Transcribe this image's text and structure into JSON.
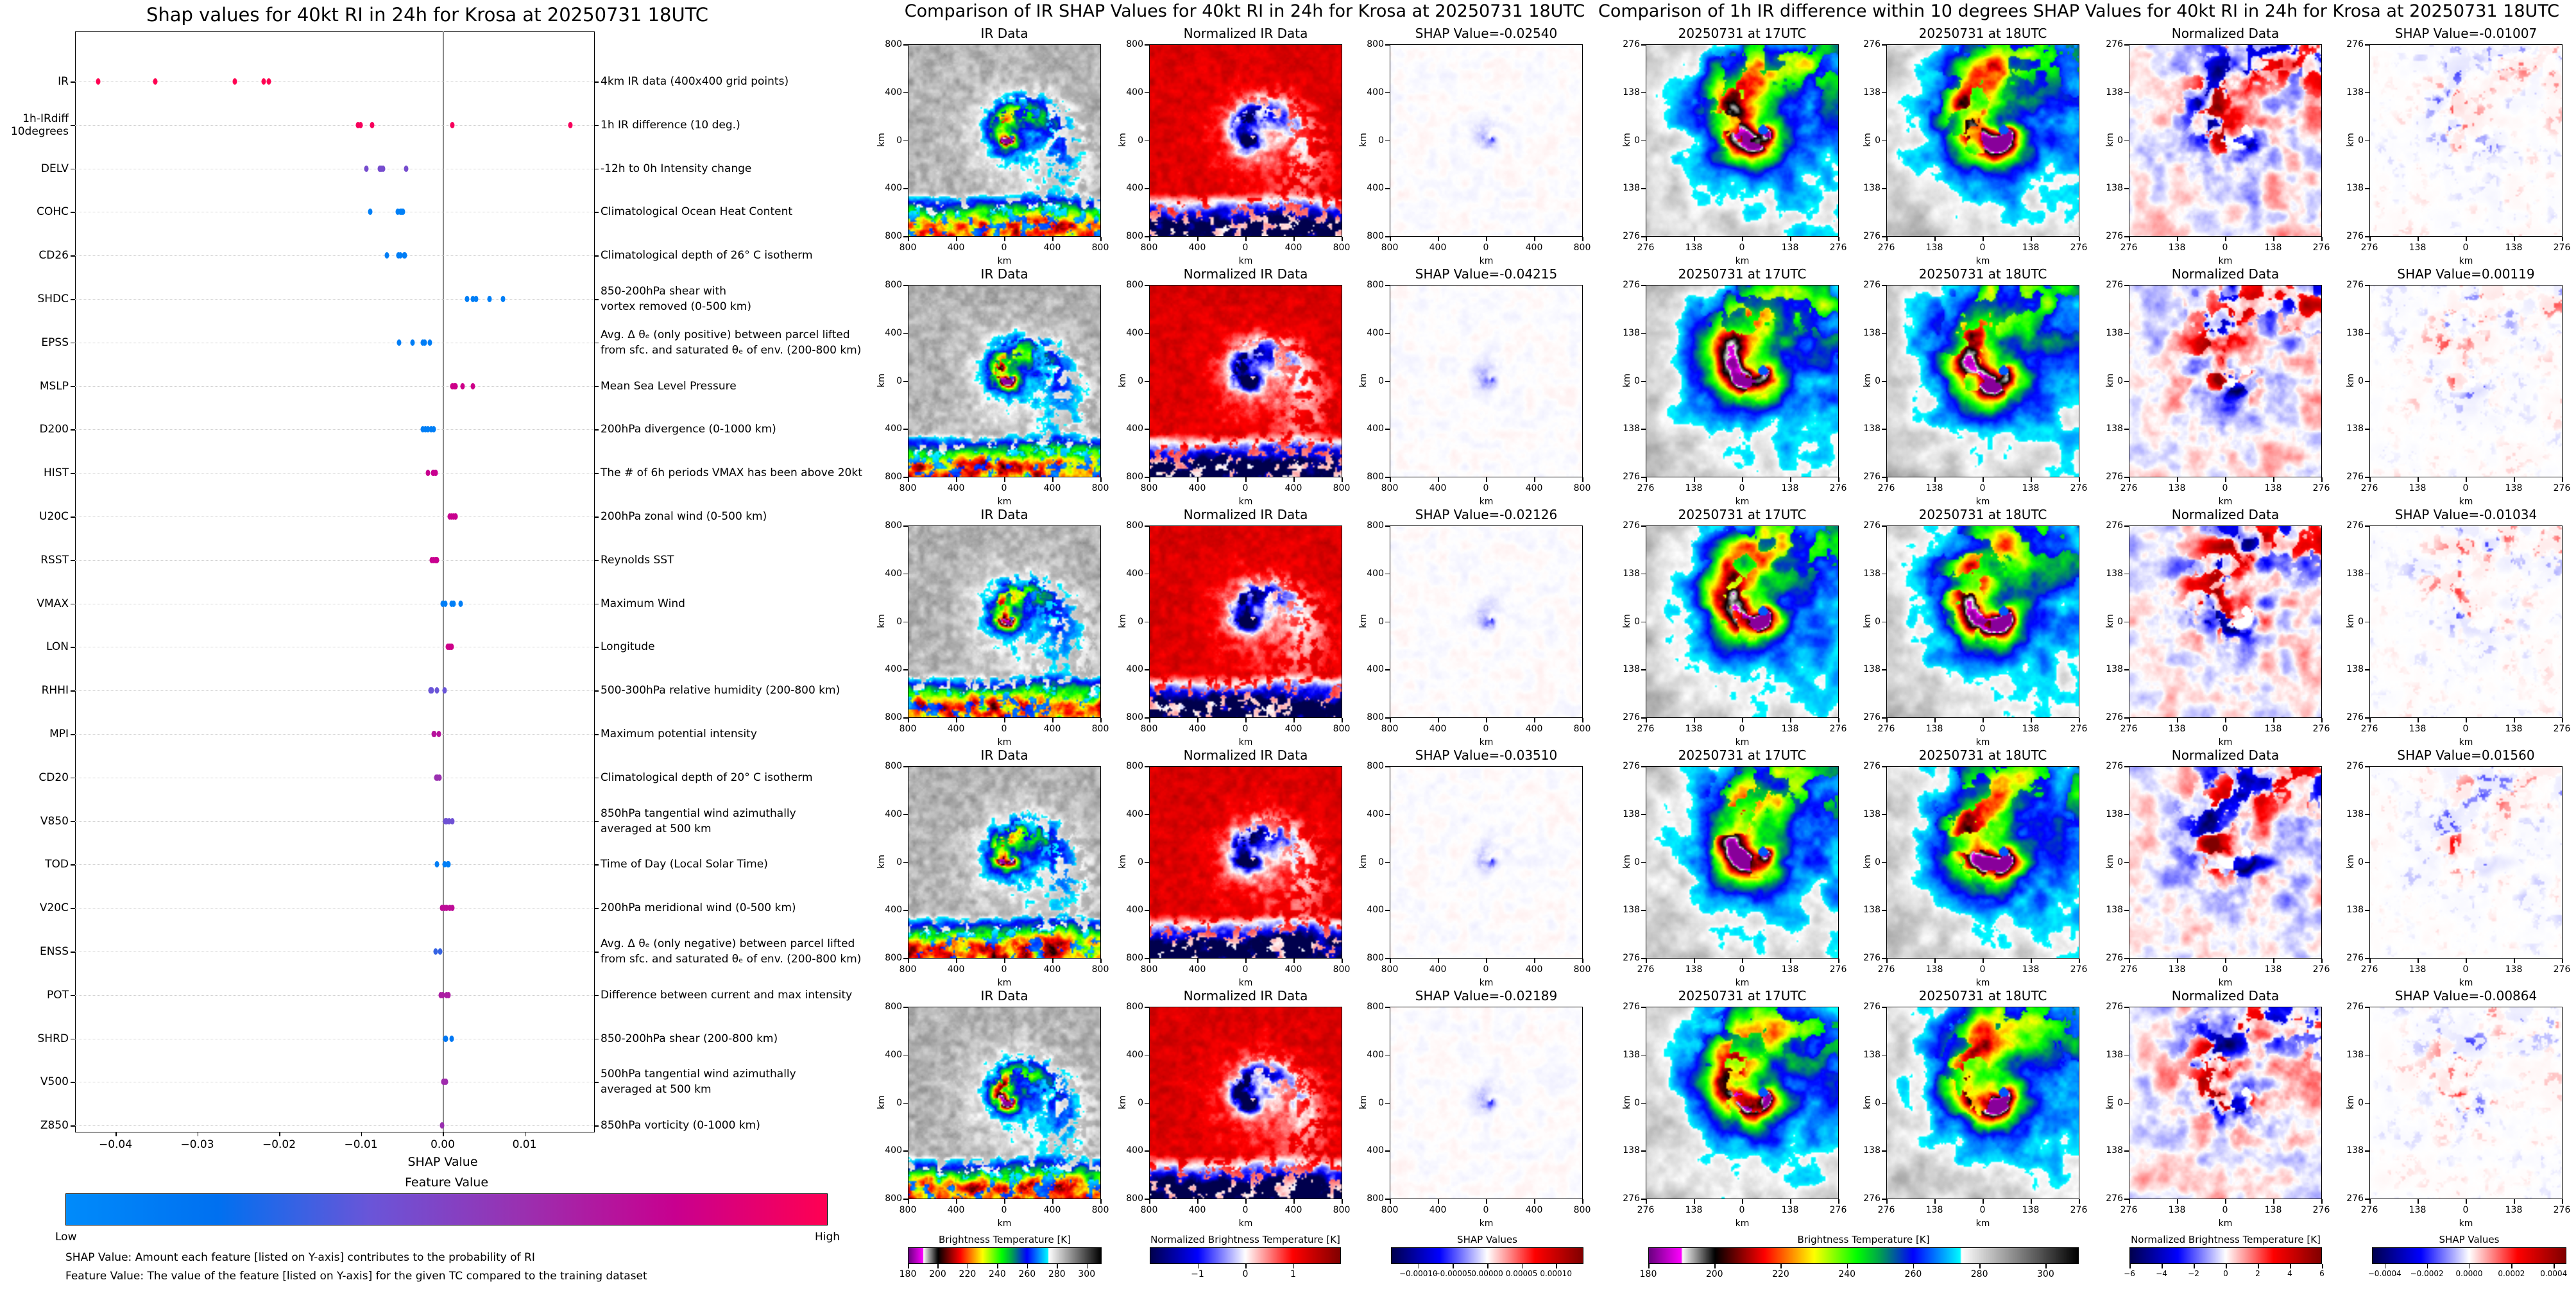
{
  "chart_data": {
    "type": "scatter",
    "title": "Shap values for 40kt RI in 24h for Krosa at 20250731 18UTC",
    "xlabel": "SHAP Value",
    "xlim": [
      -0.0449,
      0.0185
    ],
    "xticks": [
      {
        "label": "−0.04",
        "value": -0.04
      },
      {
        "label": "−0.03",
        "value": -0.03
      },
      {
        "label": "−0.02",
        "value": -0.02
      },
      {
        "label": "−0.01",
        "value": -0.01
      },
      {
        "label": "0.00",
        "value": 0.0
      },
      {
        "label": "0.01",
        "value": 0.01
      }
    ],
    "grid": "horizontal dotted",
    "features": [
      {
        "name": "IR",
        "desc": "4km IR data (400x400 grid points)",
        "feature_value": 1.0,
        "shap": [
          -0.0254,
          -0.04215,
          -0.02126,
          -0.0351,
          -0.02189
        ]
      },
      {
        "name": "1h-IRdiff\n10degrees",
        "desc": "1h IR difference (10 deg.)",
        "feature_value": 0.97,
        "shap": [
          -0.01007,
          0.00119,
          -0.01034,
          0.0156,
          -0.00864
        ]
      },
      {
        "name": "DELV",
        "desc": "-12h to 0h Intensity change",
        "feature_value": 0.45,
        "shap": [
          -0.0093,
          -0.0077,
          -0.0075,
          -0.0073,
          -0.0045
        ]
      },
      {
        "name": "COHC",
        "desc": "Climatological Ocean Heat Content",
        "feature_value": 0.08,
        "shap": [
          -0.0089,
          -0.0055,
          -0.0052,
          -0.005,
          -0.0049
        ]
      },
      {
        "name": "CD26",
        "desc": "Climatological depth of 26° C isotherm",
        "feature_value": 0.1,
        "shap": [
          -0.0068,
          -0.0054,
          -0.0052,
          -0.0047,
          -0.0046
        ]
      },
      {
        "name": "SHDC",
        "desc": "850-200hPa shear with\nvortex removed (0-500 km)",
        "feature_value": 0.1,
        "shap": [
          0.003,
          0.0037,
          0.0041,
          0.0057,
          0.0074
        ]
      },
      {
        "name": "EPSS",
        "desc": "Avg. Δ θₑ (only positive) between parcel lifted\nfrom sfc. and saturated θₑ of env. (200-800 km)",
        "feature_value": 0.1,
        "shap": [
          -0.0053,
          -0.0037,
          -0.0024,
          -0.0022,
          -0.0016
        ]
      },
      {
        "name": "MSLP",
        "desc": "Mean Sea Level Pressure",
        "feature_value": 0.82,
        "shap": [
          0.0012,
          0.0014,
          0.0016,
          0.0024,
          0.0037
        ]
      },
      {
        "name": "D200",
        "desc": "200hPa divergence (0-1000 km)",
        "feature_value": 0.1,
        "shap": [
          -0.0024,
          -0.0021,
          -0.0018,
          -0.0014,
          -0.0011
        ]
      },
      {
        "name": "HIST",
        "desc": "The # of 6h periods VMAX has been above 20kt",
        "feature_value": 0.8,
        "shap": [
          -0.0018,
          -0.0012,
          -0.0011,
          -0.0009,
          -0.0009
        ]
      },
      {
        "name": "U20C",
        "desc": "200hPa zonal wind (0-500 km)",
        "feature_value": 0.8,
        "shap": [
          0.0009,
          0.0011,
          0.0013,
          0.0016,
          0.0016
        ]
      },
      {
        "name": "RSST",
        "desc": "Reynolds SST",
        "feature_value": 0.8,
        "shap": [
          -0.0013,
          -0.0011,
          -0.0009,
          -0.0008,
          -0.0007
        ]
      },
      {
        "name": "VMAX",
        "desc": "Maximum Wind",
        "feature_value": 0.1,
        "shap": [
          0.0,
          0.0003,
          0.0011,
          0.0013,
          0.0022
        ]
      },
      {
        "name": "LON",
        "desc": "Longitude",
        "feature_value": 0.82,
        "shap": [
          0.0006,
          0.0008,
          0.0009,
          0.001,
          0.0011
        ]
      },
      {
        "name": "RHHI",
        "desc": "500-300hPa relative humidity (200-800 km)",
        "feature_value": 0.4,
        "shap": [
          -0.0015,
          -0.0013,
          -0.0007,
          0.0002
        ]
      },
      {
        "name": "MPI",
        "desc": "Maximum potential intensity",
        "feature_value": 0.72,
        "shap": [
          -0.0011,
          -0.001,
          -0.0005
        ]
      },
      {
        "name": "CD20",
        "desc": "Climatological depth of 20° C isotherm",
        "feature_value": 0.6,
        "shap": [
          -0.0008,
          -0.0006,
          -0.0004
        ]
      },
      {
        "name": "V850",
        "desc": "850hPa tangential wind azimuthally\naveraged at 500 km",
        "feature_value": 0.42,
        "shap": [
          0.0003,
          0.0005,
          0.0008,
          0.0012
        ]
      },
      {
        "name": "TOD",
        "desc": "Time of Day (Local Solar Time)",
        "feature_value": 0.1,
        "shap": [
          -0.0007,
          0.0002,
          0.0006,
          0.0007
        ]
      },
      {
        "name": "V20C",
        "desc": "200hPa meridional wind (0-500 km)",
        "feature_value": 0.75,
        "shap": [
          -0.0001,
          0.0002,
          0.0005,
          0.0009,
          0.0012
        ]
      },
      {
        "name": "ENSS",
        "desc": "Avg. Δ θₑ (only negative) between parcel lifted\nfrom sfc. and saturated θₑ of env. (200-800 km)",
        "feature_value": 0.3,
        "shap": [
          -0.0009,
          -0.0003
        ]
      },
      {
        "name": "POT",
        "desc": "Difference between current and max intensity",
        "feature_value": 0.68,
        "shap": [
          -0.0002,
          0.0,
          0.0005,
          0.0007
        ]
      },
      {
        "name": "SHRD",
        "desc": "850-200hPa shear (200-800 km)",
        "feature_value": 0.15,
        "shap": [
          0.0003,
          0.0004,
          0.0011
        ]
      },
      {
        "name": "V500",
        "desc": "500hPa tangential wind azimuthally\naveraged at 500 km",
        "feature_value": 0.62,
        "shap": [
          0.0001,
          0.0002,
          0.0004
        ]
      },
      {
        "name": "Z850",
        "desc": "850hPa vorticity (0-1000 km)",
        "feature_value": 0.6,
        "shap": [
          -0.0001
        ]
      }
    ],
    "colorbar": {
      "title": "Feature Value",
      "low": "Low",
      "high": "High",
      "colors": [
        "#008bfb",
        "#0070f0",
        "#6a55d8",
        "#9a30b0",
        "#c8008f",
        "#ff0052"
      ]
    },
    "notes": [
      "SHAP Value: Amount each feature [listed on Y-axis] contributes to the probability of RI",
      "Feature Value: The value of the feature [listed on Y-axis] for the given TC compared to the training dataset"
    ]
  },
  "ir_comparison": {
    "title": "Comparison of IR SHAP Values for 40kt RI in 24h for Krosa at 20250731 18UTC",
    "axis_label": "km",
    "ticks": [
      "800",
      "400",
      "0",
      "400",
      "800"
    ],
    "rows": [
      [
        "IR Data",
        "Normalized IR Data",
        "SHAP Value=-0.02540"
      ],
      [
        "IR Data",
        "Normalized IR Data",
        "SHAP Value=-0.04215"
      ],
      [
        "IR Data",
        "Normalized IR Data",
        "SHAP Value=-0.02126"
      ],
      [
        "IR Data",
        "Normalized IR Data",
        "SHAP Value=-0.03510"
      ],
      [
        "IR Data",
        "Normalized IR Data",
        "SHAP Value=-0.02189"
      ]
    ],
    "colorbars": [
      {
        "title": "Brightness Temperature [K]",
        "cmap": "ir",
        "range": [
          180,
          310
        ],
        "ticks": [
          {
            "label": "180",
            "value": 180
          },
          {
            "label": "200",
            "value": 200
          },
          {
            "label": "220",
            "value": 220
          },
          {
            "label": "240",
            "value": 240
          },
          {
            "label": "260",
            "value": 260
          },
          {
            "label": "280",
            "value": 280
          },
          {
            "label": "300",
            "value": 300
          }
        ]
      },
      {
        "title": "Normalized Brightness Temperature [K]",
        "cmap": "seismic",
        "range": [
          -2,
          2
        ],
        "ticks": [
          {
            "label": "−1",
            "value": -1
          },
          {
            "label": "0",
            "value": 0
          },
          {
            "label": "1",
            "value": 1
          }
        ]
      },
      {
        "title": "SHAP Values",
        "cmap": "seismic",
        "range": [
          -0.00014,
          0.00014
        ],
        "ticks": [
          {
            "label": "−0.00010",
            "value": -0.0001
          },
          {
            "label": "−0.00005",
            "value": -5e-05
          },
          {
            "label": "0.00000",
            "value": 0
          },
          {
            "label": "0.00005",
            "value": 5e-05
          },
          {
            "label": "0.00010",
            "value": 0.0001
          }
        ]
      }
    ]
  },
  "diff_comparison": {
    "title": "Comparison of 1h IR difference within 10 degrees SHAP Values for 40kt RI in 24h for Krosa at 20250731 18UTC",
    "axis_label": "km",
    "ticks": [
      "276",
      "138",
      "0",
      "138",
      "276"
    ],
    "rows": [
      [
        "20250731 at 17UTC",
        "20250731 at 18UTC",
        "Normalized Data",
        "SHAP Value=-0.01007"
      ],
      [
        "20250731 at 17UTC",
        "20250731 at 18UTC",
        "Normalized Data",
        "SHAP Value=0.00119"
      ],
      [
        "20250731 at 17UTC",
        "20250731 at 18UTC",
        "Normalized Data",
        "SHAP Value=-0.01034"
      ],
      [
        "20250731 at 17UTC",
        "20250731 at 18UTC",
        "Normalized Data",
        "SHAP Value=0.01560"
      ],
      [
        "20250731 at 17UTC",
        "20250731 at 18UTC",
        "Normalized Data",
        "SHAP Value=-0.00864"
      ]
    ],
    "colorbars": [
      {
        "title": "Brightness Temperature [K]",
        "cmap": "ir",
        "range": [
          180,
          310
        ],
        "ticks": [
          {
            "label": "180",
            "value": 180
          },
          {
            "label": "200",
            "value": 200
          },
          {
            "label": "220",
            "value": 220
          },
          {
            "label": "240",
            "value": 240
          },
          {
            "label": "260",
            "value": 260
          },
          {
            "label": "280",
            "value": 280
          },
          {
            "label": "300",
            "value": 300
          }
        ]
      },
      {
        "title": "Normalized Brightness Temperature [K]",
        "cmap": "seismic",
        "range": [
          -6,
          6
        ],
        "ticks": [
          {
            "label": "−6",
            "value": -6
          },
          {
            "label": "−4",
            "value": -4
          },
          {
            "label": "−2",
            "value": -2
          },
          {
            "label": "0",
            "value": 0
          },
          {
            "label": "2",
            "value": 2
          },
          {
            "label": "4",
            "value": 4
          },
          {
            "label": "6",
            "value": 6
          }
        ]
      },
      {
        "title": "SHAP Values",
        "cmap": "seismic",
        "range": [
          -0.00046,
          0.00046
        ],
        "ticks": [
          {
            "label": "−0.0004",
            "value": -0.0004
          },
          {
            "label": "−0.0002",
            "value": -0.0002
          },
          {
            "label": "0.0000",
            "value": 0
          },
          {
            "label": "0.0002",
            "value": 0.0002
          },
          {
            "label": "0.0004",
            "value": 0.0004
          }
        ]
      }
    ]
  }
}
